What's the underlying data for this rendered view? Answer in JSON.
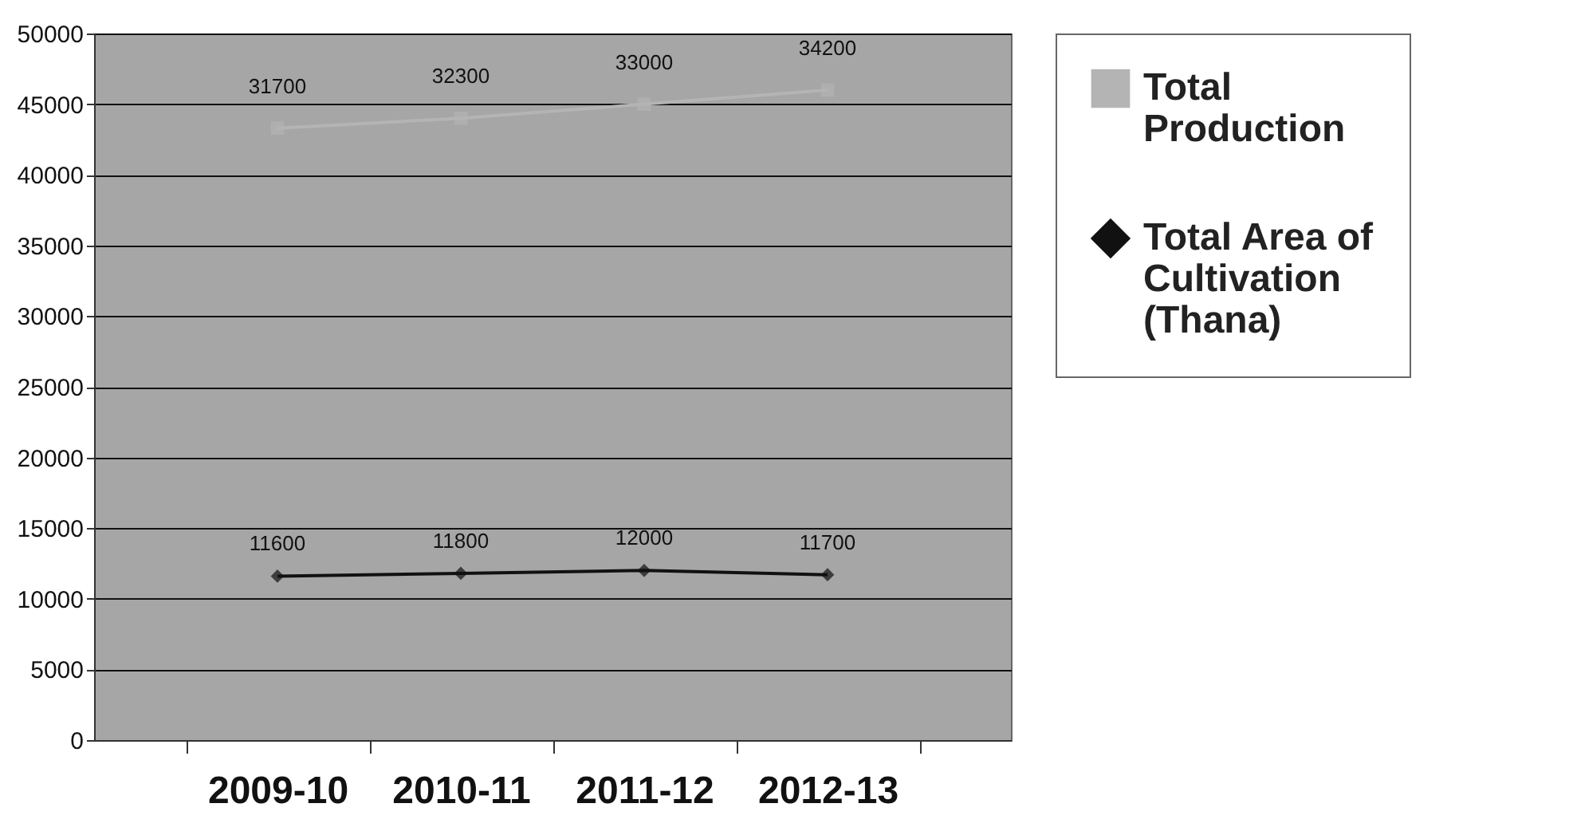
{
  "chart_data": {
    "type": "line",
    "categories": [
      "2009-10",
      "2010-11",
      "2011-12",
      "2012-13"
    ],
    "series": [
      {
        "name": "Total Production",
        "color": "#b4b4b4",
        "marker": "square",
        "values": [
          43300,
          44000,
          45000,
          46000
        ]
      },
      {
        "name": "Total Area of Cultivation (Thana)",
        "color": "#111111",
        "marker": "diamond",
        "values": [
          11600,
          11800,
          12000,
          11700
        ],
        "value_labels": [
          "11600",
          "11800",
          "12000",
          "11700"
        ]
      }
    ],
    "ylim": [
      0,
      50000
    ],
    "yticks": [
      0,
      5000,
      10000,
      15000,
      20000,
      25000,
      30000,
      35000,
      40000,
      45000,
      50000
    ],
    "grid": "y",
    "legend": "right",
    "annotations": [
      {
        "text": "31700",
        "x": "2009-10",
        "y": 43300
      },
      {
        "text": "32300",
        "x": "2010-11",
        "y": 44000
      },
      {
        "text": "33000",
        "x": "2011-12",
        "y": 45000
      },
      {
        "text": "34200",
        "x": "2012-13",
        "y": 46000
      }
    ]
  }
}
